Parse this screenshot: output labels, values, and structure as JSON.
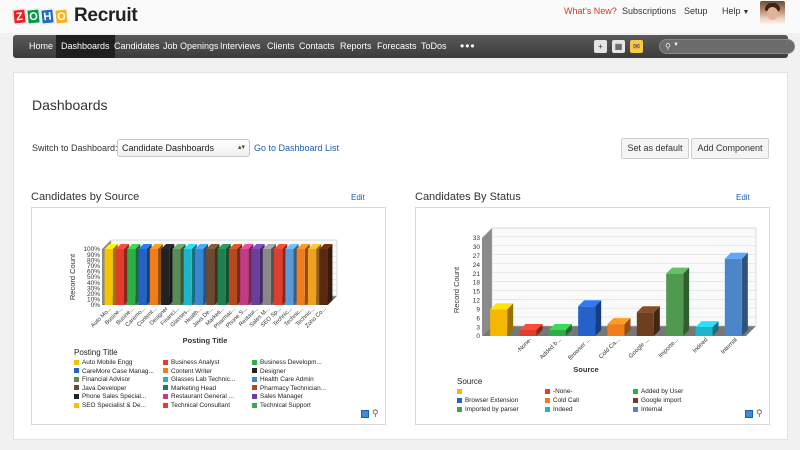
{
  "app": {
    "logo_letters": [
      "Z",
      "O",
      "H",
      "O"
    ],
    "logo_colors": [
      "#e42527",
      "#089949",
      "#226db4",
      "#f9b21d"
    ],
    "product": "Recruit"
  },
  "top_links": {
    "whats_new": "What's New?",
    "subscriptions": "Subscriptions",
    "setup": "Setup",
    "help": "Help"
  },
  "nav": {
    "items": [
      "Home",
      "Dashboards",
      "Candidates",
      "Job Openings",
      "Interviews",
      "Clients",
      "Contacts",
      "Reports",
      "Forecasts",
      "ToDos"
    ],
    "active": "Dashboards",
    "more": "•••",
    "icons": [
      "plus-icon",
      "calendar-icon",
      "mail-icon",
      "search-icon"
    ]
  },
  "page": {
    "title": "Dashboards",
    "switch_label": "Switch to Dashboard:",
    "dashboard_select": "Candidate Dashboards",
    "goto_link": "Go to Dashboard List",
    "set_default": "Set as default",
    "add_component": "Add Component"
  },
  "widgets": [
    {
      "title": "Candidates by Source",
      "edit": "Edit"
    },
    {
      "title": "Candidates By Status",
      "edit": "Edit"
    }
  ],
  "chart_data": [
    {
      "type": "bar",
      "title": "Candidates by Source",
      "xlabel": "Posting Title",
      "ylabel": "Record Count",
      "yticks": [
        "0%",
        "10%",
        "20%",
        "30%",
        "40%",
        "50%",
        "60%",
        "70%",
        "80%",
        "90%",
        "100%"
      ],
      "ylim": [
        0,
        100
      ],
      "stacked_percent": true,
      "categories": [
        "Auto Mo...",
        "Busine...",
        "Busine...",
        "Caremo...",
        "Content...",
        "Designer",
        "Financi...",
        "Glasses...",
        "Health...",
        "Java De...",
        "Marketi...",
        "Pharmac...",
        "Phone S...",
        "Restaur...",
        "Sales M...",
        "SEO Sp...",
        "Technic...",
        "Technic...",
        "Technic...",
        "Zoho Co..."
      ],
      "values": [
        100,
        100,
        100,
        100,
        100,
        100,
        100,
        100,
        100,
        100,
        100,
        100,
        100,
        100,
        100,
        100,
        100,
        100,
        100,
        100
      ],
      "bar_colors": [
        "#f5c400",
        "#e23c2c",
        "#2fae47",
        "#2462c9",
        "#ef7d1c",
        "#222222",
        "#5a8a5a",
        "#1fb5c9",
        "#3b86d0",
        "#6d4a2d",
        "#1f7f4f",
        "#b5481f",
        "#c23b86",
        "#6b3f9c",
        "#888888",
        "#e23c2c",
        "#5b9bd5",
        "#ef7d1c",
        "#f0a020",
        "#5a2a10"
      ],
      "legend_title": "Posting Title",
      "legend": [
        {
          "label": "Auto Mobile Engg",
          "color": "#f5c400"
        },
        {
          "label": "Business Analyst",
          "color": "#e23c2c"
        },
        {
          "label": "Business Developm...",
          "color": "#2fae47"
        },
        {
          "label": "CareMore Case Manag...",
          "color": "#2462c9"
        },
        {
          "label": "Content Writer",
          "color": "#ef7d1c"
        },
        {
          "label": "Designer",
          "color": "#222222"
        },
        {
          "label": "Financial Advisor",
          "color": "#5a8a5a"
        },
        {
          "label": "Glasses Lab Technic...",
          "color": "#1fb5c9"
        },
        {
          "label": "Health Care Admin",
          "color": "#3b86d0"
        },
        {
          "label": "Java Developer",
          "color": "#6d4a2d"
        },
        {
          "label": "Marketing Head",
          "color": "#1f7f4f"
        },
        {
          "label": "Pharmacy Technician...",
          "color": "#b5481f"
        },
        {
          "label": "Phone Sales Special...",
          "color": "#222222"
        },
        {
          "label": "Restaurant General ...",
          "color": "#c23b86"
        },
        {
          "label": "Sales Manager",
          "color": "#6b3f9c"
        },
        {
          "label": "SEO Specialist & De...",
          "color": "#f5c400"
        },
        {
          "label": "Technical Consultant",
          "color": "#e23c2c"
        },
        {
          "label": "Technical Support",
          "color": "#2fae47"
        }
      ]
    },
    {
      "type": "bar",
      "title": "Candidates By Status",
      "xlabel": "Source",
      "ylabel": "Record Count",
      "ylim": [
        0,
        33
      ],
      "yticks": [
        "0",
        "3",
        "6",
        "9",
        "12",
        "15",
        "18",
        "21",
        "24",
        "27",
        "30",
        "33"
      ],
      "categories": [
        "",
        "-None-",
        "Added b...",
        "Browser ...",
        "Cold Ca...",
        "Google ...",
        "Importe...",
        "Indeed",
        "Internal"
      ],
      "values": [
        9,
        2,
        2,
        10,
        4,
        8,
        21,
        3,
        26
      ],
      "bar_colors": [
        "#f5b800",
        "#e23c2c",
        "#2fae47",
        "#2462c9",
        "#ef7d1c",
        "#6d3f1f",
        "#4f9a4f",
        "#1fb5c9",
        "#4a86c8"
      ],
      "legend_title": "Source",
      "legend": [
        {
          "label": "",
          "color": "#f5b800"
        },
        {
          "label": "-None-",
          "color": "#e23c2c"
        },
        {
          "label": "Added by User",
          "color": "#2fae47"
        },
        {
          "label": "Browser Extension",
          "color": "#2462c9"
        },
        {
          "label": "Cold Call",
          "color": "#ef7d1c"
        },
        {
          "label": "Google import",
          "color": "#6d3f1f"
        },
        {
          "label": "Imported by parser",
          "color": "#4f9a4f"
        },
        {
          "label": "Indeed",
          "color": "#1fb5c9"
        },
        {
          "label": "Internal",
          "color": "#4a86c8"
        }
      ]
    }
  ]
}
